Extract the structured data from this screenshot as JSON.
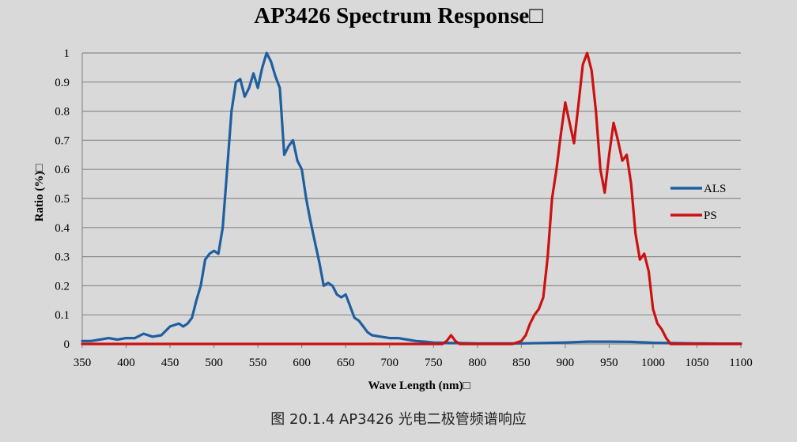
{
  "title": "AP3426 Spectrum Response□",
  "caption": "图  20.1.4 AP3426 光电二极管频谱响应",
  "chart_data": {
    "type": "line",
    "title": "AP3426 Spectrum Response□",
    "xlabel": "Wave Length (nm)□",
    "ylabel": "Ratio (%)□",
    "xlim": [
      350,
      1100
    ],
    "ylim": [
      0,
      1
    ],
    "xticks": [
      "350",
      "400",
      "450",
      "500",
      "550",
      "600",
      "650",
      "700",
      "750",
      "800",
      "850",
      "900",
      "950",
      "1000",
      "1050",
      "1100"
    ],
    "yticks": [
      "0",
      "0.1",
      "0.2",
      "0.3",
      "0.4",
      "0.5",
      "0.6",
      "0.7",
      "0.8",
      "0.9",
      "1"
    ],
    "grid": "horizontal",
    "legend_position": "right",
    "series": [
      {
        "name": "ALS",
        "color": "#1f5fa0",
        "points": [
          [
            350,
            0.01
          ],
          [
            360,
            0.01
          ],
          [
            370,
            0.015
          ],
          [
            380,
            0.02
          ],
          [
            390,
            0.015
          ],
          [
            400,
            0.02
          ],
          [
            410,
            0.02
          ],
          [
            420,
            0.035
          ],
          [
            430,
            0.025
          ],
          [
            440,
            0.03
          ],
          [
            450,
            0.06
          ],
          [
            460,
            0.07
          ],
          [
            465,
            0.06
          ],
          [
            470,
            0.07
          ],
          [
            475,
            0.09
          ],
          [
            480,
            0.15
          ],
          [
            485,
            0.2
          ],
          [
            490,
            0.29
          ],
          [
            495,
            0.31
          ],
          [
            500,
            0.32
          ],
          [
            505,
            0.31
          ],
          [
            510,
            0.4
          ],
          [
            515,
            0.6
          ],
          [
            520,
            0.8
          ],
          [
            525,
            0.9
          ],
          [
            530,
            0.91
          ],
          [
            535,
            0.85
          ],
          [
            540,
            0.88
          ],
          [
            545,
            0.93
          ],
          [
            550,
            0.88
          ],
          [
            555,
            0.95
          ],
          [
            560,
            1.0
          ],
          [
            565,
            0.97
          ],
          [
            570,
            0.92
          ],
          [
            575,
            0.88
          ],
          [
            580,
            0.65
          ],
          [
            585,
            0.68
          ],
          [
            590,
            0.7
          ],
          [
            595,
            0.63
          ],
          [
            600,
            0.6
          ],
          [
            605,
            0.5
          ],
          [
            610,
            0.42
          ],
          [
            615,
            0.35
          ],
          [
            620,
            0.28
          ],
          [
            625,
            0.2
          ],
          [
            630,
            0.21
          ],
          [
            635,
            0.2
          ],
          [
            640,
            0.17
          ],
          [
            645,
            0.16
          ],
          [
            650,
            0.17
          ],
          [
            655,
            0.13
          ],
          [
            660,
            0.09
          ],
          [
            665,
            0.08
          ],
          [
            670,
            0.06
          ],
          [
            675,
            0.04
          ],
          [
            680,
            0.03
          ],
          [
            690,
            0.025
          ],
          [
            700,
            0.02
          ],
          [
            710,
            0.02
          ],
          [
            720,
            0.015
          ],
          [
            730,
            0.01
          ],
          [
            740,
            0.008
          ],
          [
            750,
            0.005
          ],
          [
            760,
            0.004
          ],
          [
            770,
            0.003
          ],
          [
            780,
            0.003
          ],
          [
            800,
            0.002
          ],
          [
            850,
            0.002
          ],
          [
            900,
            0.005
          ],
          [
            925,
            0.008
          ],
          [
            950,
            0.008
          ],
          [
            975,
            0.007
          ],
          [
            1000,
            0.004
          ],
          [
            1050,
            0.002
          ],
          [
            1080,
            0.001
          ],
          [
            1100,
            0.001
          ]
        ]
      },
      {
        "name": "PS",
        "color": "#cc1111",
        "points": [
          [
            350,
            0.0
          ],
          [
            700,
            0.0
          ],
          [
            760,
            0.0
          ],
          [
            765,
            0.01
          ],
          [
            770,
            0.03
          ],
          [
            775,
            0.01
          ],
          [
            780,
            0.0
          ],
          [
            840,
            0.0
          ],
          [
            850,
            0.01
          ],
          [
            855,
            0.03
          ],
          [
            860,
            0.07
          ],
          [
            865,
            0.1
          ],
          [
            870,
            0.12
          ],
          [
            875,
            0.16
          ],
          [
            880,
            0.3
          ],
          [
            885,
            0.5
          ],
          [
            890,
            0.6
          ],
          [
            895,
            0.72
          ],
          [
            900,
            0.83
          ],
          [
            905,
            0.76
          ],
          [
            910,
            0.69
          ],
          [
            915,
            0.82
          ],
          [
            920,
            0.96
          ],
          [
            925,
            1.0
          ],
          [
            930,
            0.94
          ],
          [
            935,
            0.8
          ],
          [
            940,
            0.6
          ],
          [
            945,
            0.52
          ],
          [
            950,
            0.65
          ],
          [
            955,
            0.76
          ],
          [
            960,
            0.7
          ],
          [
            965,
            0.63
          ],
          [
            970,
            0.65
          ],
          [
            975,
            0.55
          ],
          [
            980,
            0.38
          ],
          [
            985,
            0.29
          ],
          [
            990,
            0.31
          ],
          [
            995,
            0.25
          ],
          [
            1000,
            0.12
          ],
          [
            1005,
            0.07
          ],
          [
            1010,
            0.05
          ],
          [
            1015,
            0.02
          ],
          [
            1020,
            0.0
          ],
          [
            1100,
            0.0
          ]
        ]
      }
    ]
  }
}
